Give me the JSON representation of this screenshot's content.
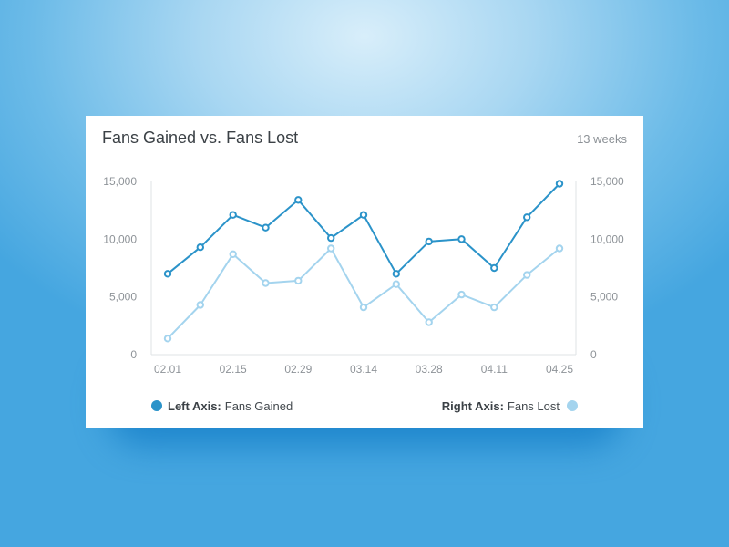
{
  "card": {
    "title": "Fans Gained vs. Fans Lost",
    "range_label": "13 weeks"
  },
  "legend": {
    "left_prefix": "Left Axis:",
    "left_name": "Fans Gained",
    "right_prefix": "Right Axis:",
    "right_name": "Fans Lost"
  },
  "chart_data": {
    "type": "line",
    "title": "Fans Gained vs. Fans Lost",
    "x": [
      "02.01",
      "02.08",
      "02.15",
      "02.22",
      "02.29",
      "03.07",
      "03.14",
      "03.21",
      "03.28",
      "04.04",
      "04.11",
      "04.18",
      "04.25"
    ],
    "x_tick_labels": [
      "02.01",
      "02.15",
      "02.29",
      "03.14",
      "03.28",
      "04.11",
      "04.25"
    ],
    "y_left_ticks": [
      "15,000",
      "10,000",
      "5,000",
      "0"
    ],
    "y_right_ticks": [
      "15,000",
      "10,000",
      "5,000",
      "0"
    ],
    "y_left_lim": [
      0,
      15000
    ],
    "y_right_lim": [
      0,
      15000
    ],
    "grid": false,
    "legend_position": "bottom",
    "series": [
      {
        "name": "Fans Gained",
        "axis": "left",
        "color": "#2b93c9",
        "values": [
          7000,
          9300,
          12100,
          11000,
          13400,
          10100,
          12100,
          7000,
          9800,
          10000,
          7500,
          11900,
          14800
        ]
      },
      {
        "name": "Fans Lost",
        "axis": "right",
        "color": "#a4d4ee",
        "values": [
          1400,
          4300,
          8700,
          6200,
          6400,
          9200,
          4100,
          6100,
          2800,
          5200,
          4100,
          6900,
          9200
        ]
      }
    ]
  }
}
